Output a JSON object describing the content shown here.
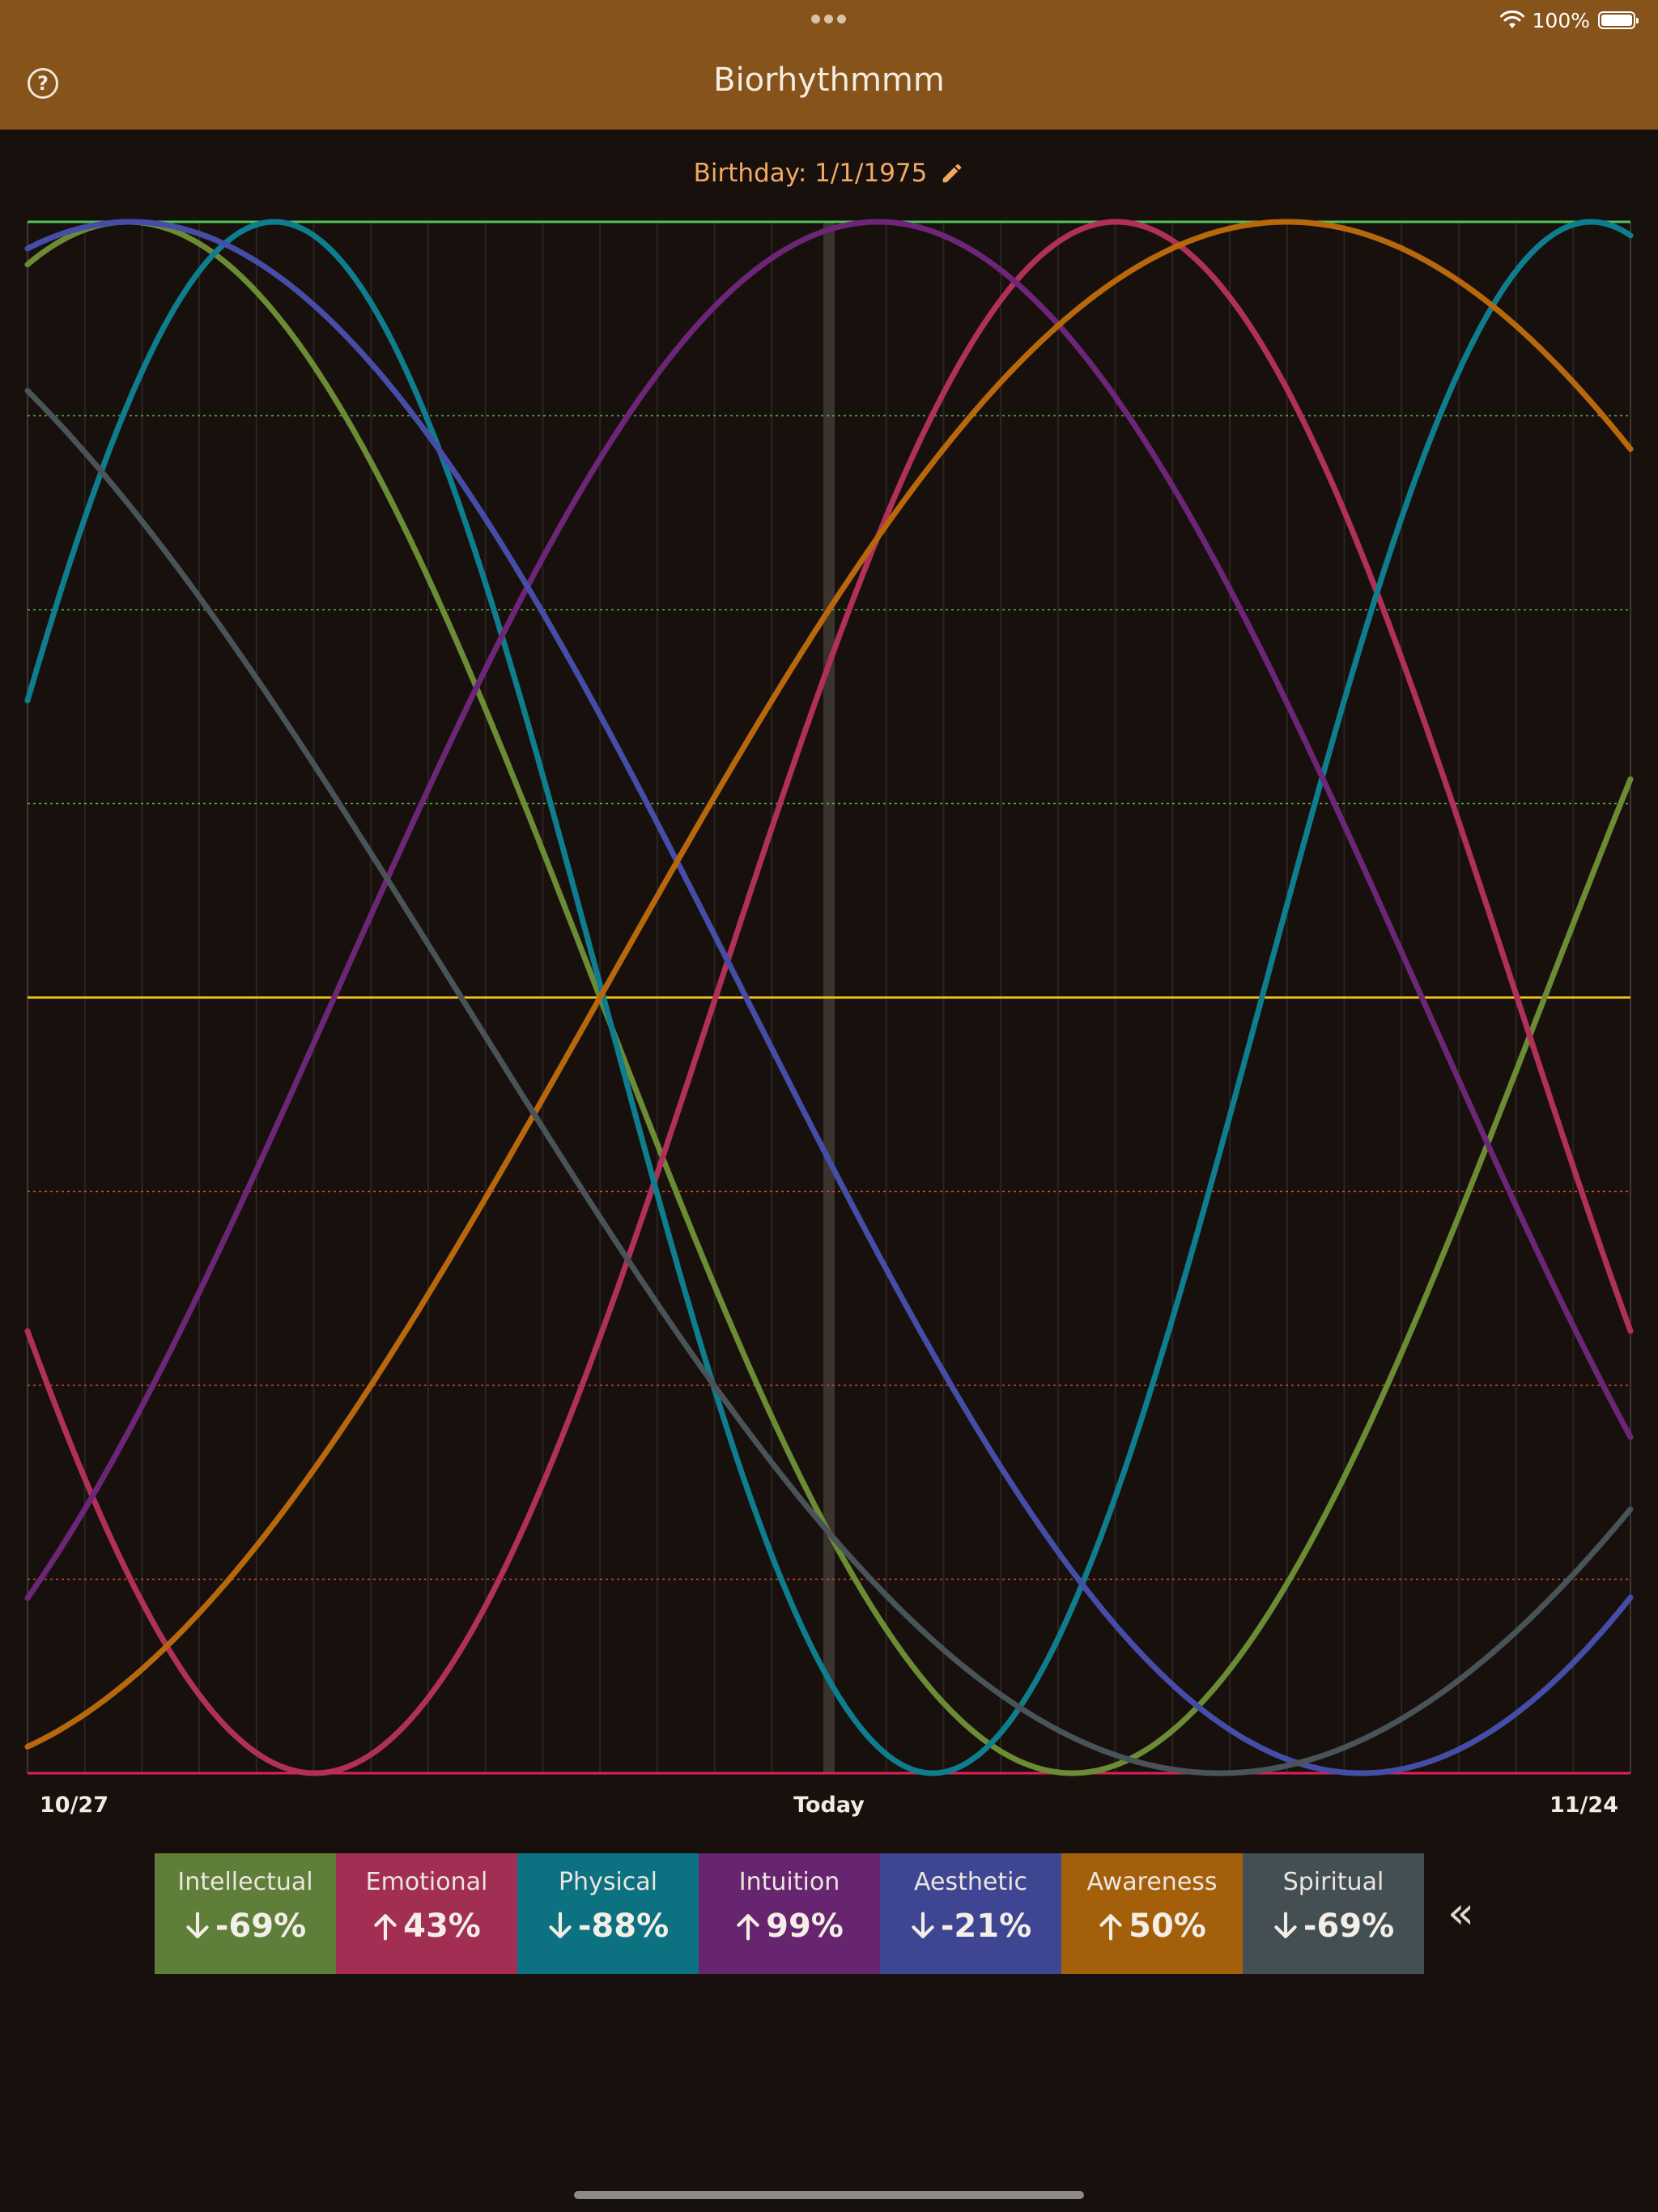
{
  "app": {
    "title": "Biorhythmmm"
  },
  "status_bar": {
    "battery": "100%"
  },
  "birthday": {
    "label": "Birthday: 1/1/1975"
  },
  "axis": {
    "start": "10/27",
    "middle": "Today",
    "end": "11/24"
  },
  "legend": [
    {
      "name": "Intellectual",
      "value": "-69%",
      "direction": "down",
      "color": "#5e7e3a"
    },
    {
      "name": "Emotional",
      "value": "43%",
      "direction": "up",
      "color": "#a22e54"
    },
    {
      "name": "Physical",
      "value": "-88%",
      "direction": "down",
      "color": "#0c7282"
    },
    {
      "name": "Intuition",
      "value": "99%",
      "direction": "up",
      "color": "#67246f"
    },
    {
      "name": "Aesthetic",
      "value": "-21%",
      "direction": "down",
      "color": "#3e4694"
    },
    {
      "name": "Awareness",
      "value": "50%",
      "direction": "up",
      "color": "#a45f0a"
    },
    {
      "name": "Spiritual",
      "value": "-69%",
      "direction": "down",
      "color": "#444f53"
    }
  ],
  "chart_data": {
    "type": "line",
    "x_range": [
      -14,
      14
    ],
    "ylim": [
      -1,
      1
    ],
    "today": 0,
    "series": [
      {
        "name": "Intellectual",
        "color": "#6b8b35",
        "period": 33,
        "today_value": -0.69,
        "direction": "down"
      },
      {
        "name": "Emotional",
        "color": "#b0305a",
        "period": 28,
        "today_value": 0.43,
        "direction": "up"
      },
      {
        "name": "Physical",
        "color": "#0e7d8e",
        "period": 23,
        "today_value": -0.88,
        "direction": "down"
      },
      {
        "name": "Intuition",
        "color": "#6c2577",
        "period": 38,
        "today_value": 0.99,
        "direction": "up"
      },
      {
        "name": "Aesthetic",
        "color": "#454da6",
        "period": 43,
        "today_value": -0.21,
        "direction": "down"
      },
      {
        "name": "Awareness",
        "color": "#b8680c",
        "period": 48,
        "today_value": 0.5,
        "direction": "up"
      },
      {
        "name": "Spiritual",
        "color": "#4a5357",
        "period": 53,
        "today_value": -0.69,
        "direction": "down"
      }
    ]
  }
}
